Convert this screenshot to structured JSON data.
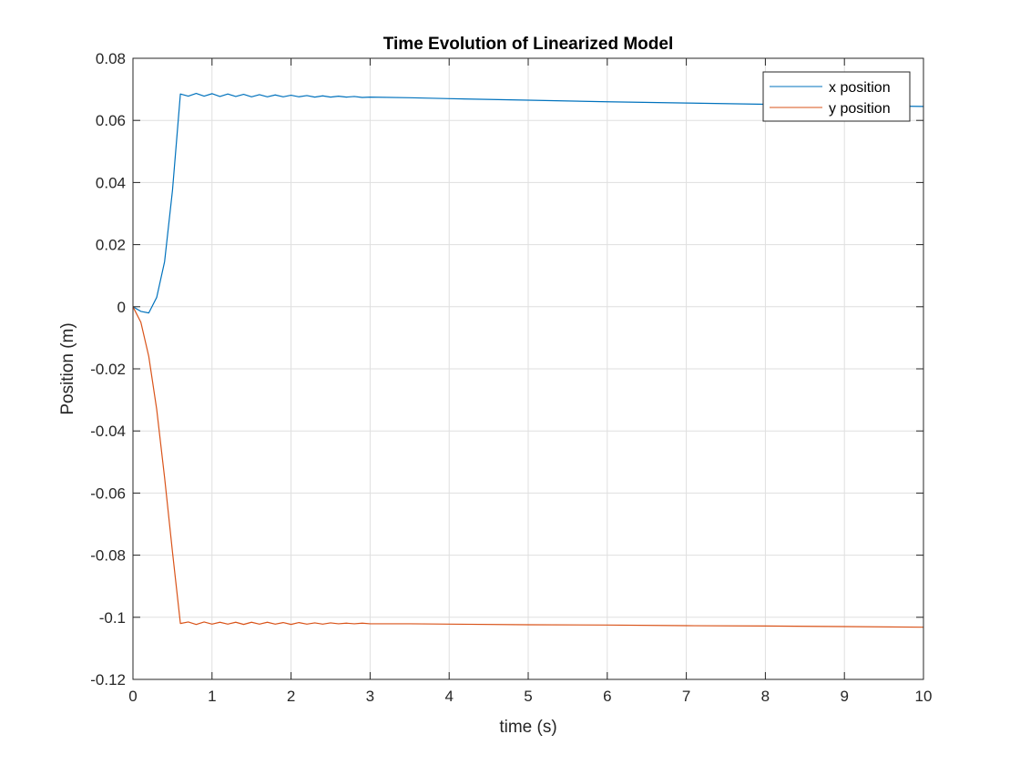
{
  "chart_data": {
    "type": "line",
    "title": "Time Evolution of Linearized Model",
    "xlabel": "time (s)",
    "ylabel": "Position (m)",
    "xlim": [
      0,
      10
    ],
    "ylim": [
      -0.12,
      0.08
    ],
    "xticks": [
      0,
      1,
      2,
      3,
      4,
      5,
      6,
      7,
      8,
      9,
      10
    ],
    "xtick_labels": [
      "0",
      "1",
      "2",
      "3",
      "4",
      "5",
      "6",
      "7",
      "8",
      "9",
      "10"
    ],
    "yticks": [
      -0.12,
      -0.1,
      -0.08,
      -0.06,
      -0.04,
      -0.02,
      0,
      0.02,
      0.04,
      0.06,
      0.08
    ],
    "ytick_labels": [
      "-0.12",
      "-0.1",
      "-0.08",
      "-0.06",
      "-0.04",
      "-0.02",
      "0",
      "0.02",
      "0.04",
      "0.06",
      "0.08"
    ],
    "grid": true,
    "legend_position": "top-right",
    "series": [
      {
        "name": "x position",
        "color": "#0072BD",
        "x": [
          0,
          0.1,
          0.2,
          0.3,
          0.4,
          0.5,
          0.6,
          0.7,
          0.8,
          0.9,
          1.0,
          1.1,
          1.2,
          1.3,
          1.4,
          1.5,
          1.6,
          1.7,
          1.8,
          1.9,
          2.0,
          2.1,
          2.2,
          2.3,
          2.4,
          2.5,
          2.6,
          2.7,
          2.8,
          2.9,
          3.0,
          3.5,
          4,
          5,
          6,
          7,
          8,
          9,
          10
        ],
        "y": [
          0,
          -0.0015,
          -0.002,
          0.003,
          0.0145,
          0.0375,
          0.0685,
          0.0678,
          0.0687,
          0.0678,
          0.0686,
          0.0677,
          0.0685,
          0.0677,
          0.0684,
          0.0676,
          0.0683,
          0.0676,
          0.0682,
          0.0676,
          0.0681,
          0.0676,
          0.068,
          0.0675,
          0.0679,
          0.0675,
          0.0678,
          0.0675,
          0.0677,
          0.0674,
          0.0675,
          0.0673,
          0.067,
          0.0665,
          0.066,
          0.0656,
          0.0652,
          0.0648,
          0.0645
        ]
      },
      {
        "name": "y position",
        "color": "#D95319",
        "x": [
          0,
          0.1,
          0.2,
          0.3,
          0.4,
          0.5,
          0.6,
          0.7,
          0.8,
          0.9,
          1.0,
          1.1,
          1.2,
          1.3,
          1.4,
          1.5,
          1.6,
          1.7,
          1.8,
          1.9,
          2.0,
          2.1,
          2.2,
          2.3,
          2.4,
          2.5,
          2.6,
          2.7,
          2.8,
          2.9,
          3.0,
          3.5,
          4,
          5,
          6,
          7,
          8,
          9,
          10
        ],
        "y": [
          0,
          -0.005,
          -0.016,
          -0.033,
          -0.055,
          -0.079,
          -0.102,
          -0.1015,
          -0.1023,
          -0.1015,
          -0.1022,
          -0.1016,
          -0.1022,
          -0.1016,
          -0.1023,
          -0.1016,
          -0.1022,
          -0.1016,
          -0.1022,
          -0.1017,
          -0.1023,
          -0.1017,
          -0.1022,
          -0.1018,
          -0.1022,
          -0.1018,
          -0.1021,
          -0.1019,
          -0.1021,
          -0.1019,
          -0.1021,
          -0.1021,
          -0.1022,
          -0.1024,
          -0.1025,
          -0.1027,
          -0.1028,
          -0.103,
          -0.1032
        ]
      }
    ]
  }
}
